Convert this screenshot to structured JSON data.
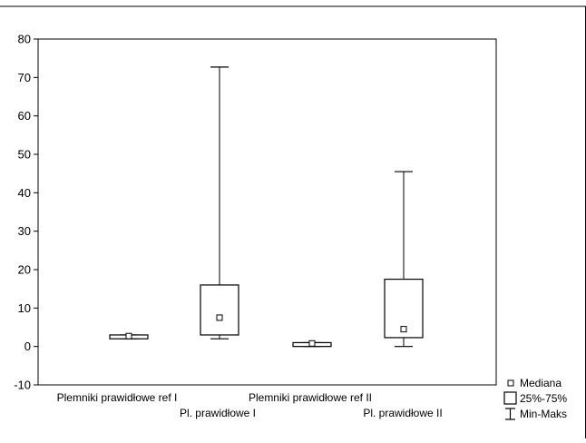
{
  "chart_data": {
    "type": "box",
    "ylim": [
      -10,
      80
    ],
    "yticks": [
      -10,
      0,
      10,
      20,
      30,
      40,
      50,
      60,
      70,
      80
    ],
    "categories": [
      "Plemniki prawidłowe ref I",
      "Pl. prawidłowe I",
      "Plemniki prawidłowe ref II",
      "Pl. prawidłowe II"
    ],
    "boxes": [
      {
        "min": 2.0,
        "q1": 2.0,
        "median": 2.7,
        "q3": 3.0,
        "max": 3.0
      },
      {
        "min": 2.0,
        "q1": 3.0,
        "median": 7.5,
        "q3": 16.0,
        "max": 72.7
      },
      {
        "min": 0.0,
        "q1": 0.0,
        "median": 0.8,
        "q3": 1.0,
        "max": 1.0
      },
      {
        "min": 0.0,
        "q1": 2.3,
        "median": 4.5,
        "q3": 17.5,
        "max": 45.5
      }
    ],
    "legend": {
      "position": "bottom-right",
      "items": [
        "Mediana",
        "25%-75%",
        "Min-Maks"
      ]
    },
    "grid": false
  }
}
